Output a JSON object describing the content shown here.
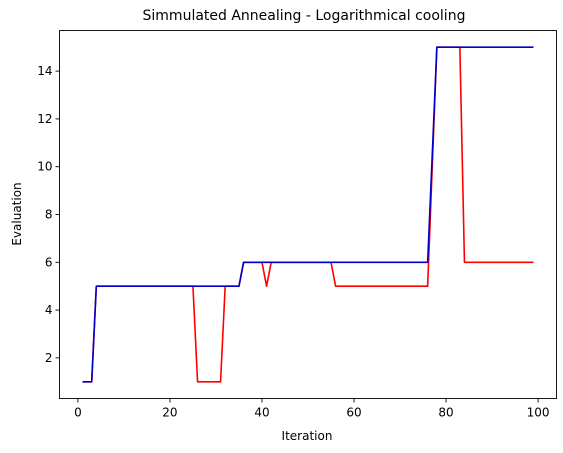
{
  "chart_data": {
    "type": "line",
    "title": "Simmulated Annealing - Logarithmical cooling",
    "xlabel": "Iteration",
    "ylabel": "Evaluation",
    "xlim": [
      -4,
      104
    ],
    "ylim": [
      0.3,
      15.7
    ],
    "xticks": [
      0,
      20,
      40,
      60,
      80,
      100
    ],
    "yticks": [
      2,
      4,
      6,
      8,
      10,
      12,
      14
    ],
    "grid": false,
    "series": [
      {
        "color": "#ff0000",
        "x": [
          1,
          3,
          4,
          25,
          26,
          31,
          32,
          35,
          36,
          40,
          41,
          42,
          55,
          56,
          76,
          78,
          83,
          84,
          99
        ],
        "y": [
          1,
          1,
          5,
          5,
          1,
          1,
          5,
          5,
          6,
          6,
          5,
          6,
          6,
          5,
          5,
          15,
          15,
          6,
          6
        ]
      },
      {
        "color": "#0000cc",
        "x": [
          1,
          3,
          4,
          35,
          36,
          76,
          78,
          99
        ],
        "y": [
          1,
          1,
          5,
          5,
          6,
          6,
          15,
          15
        ]
      }
    ]
  }
}
